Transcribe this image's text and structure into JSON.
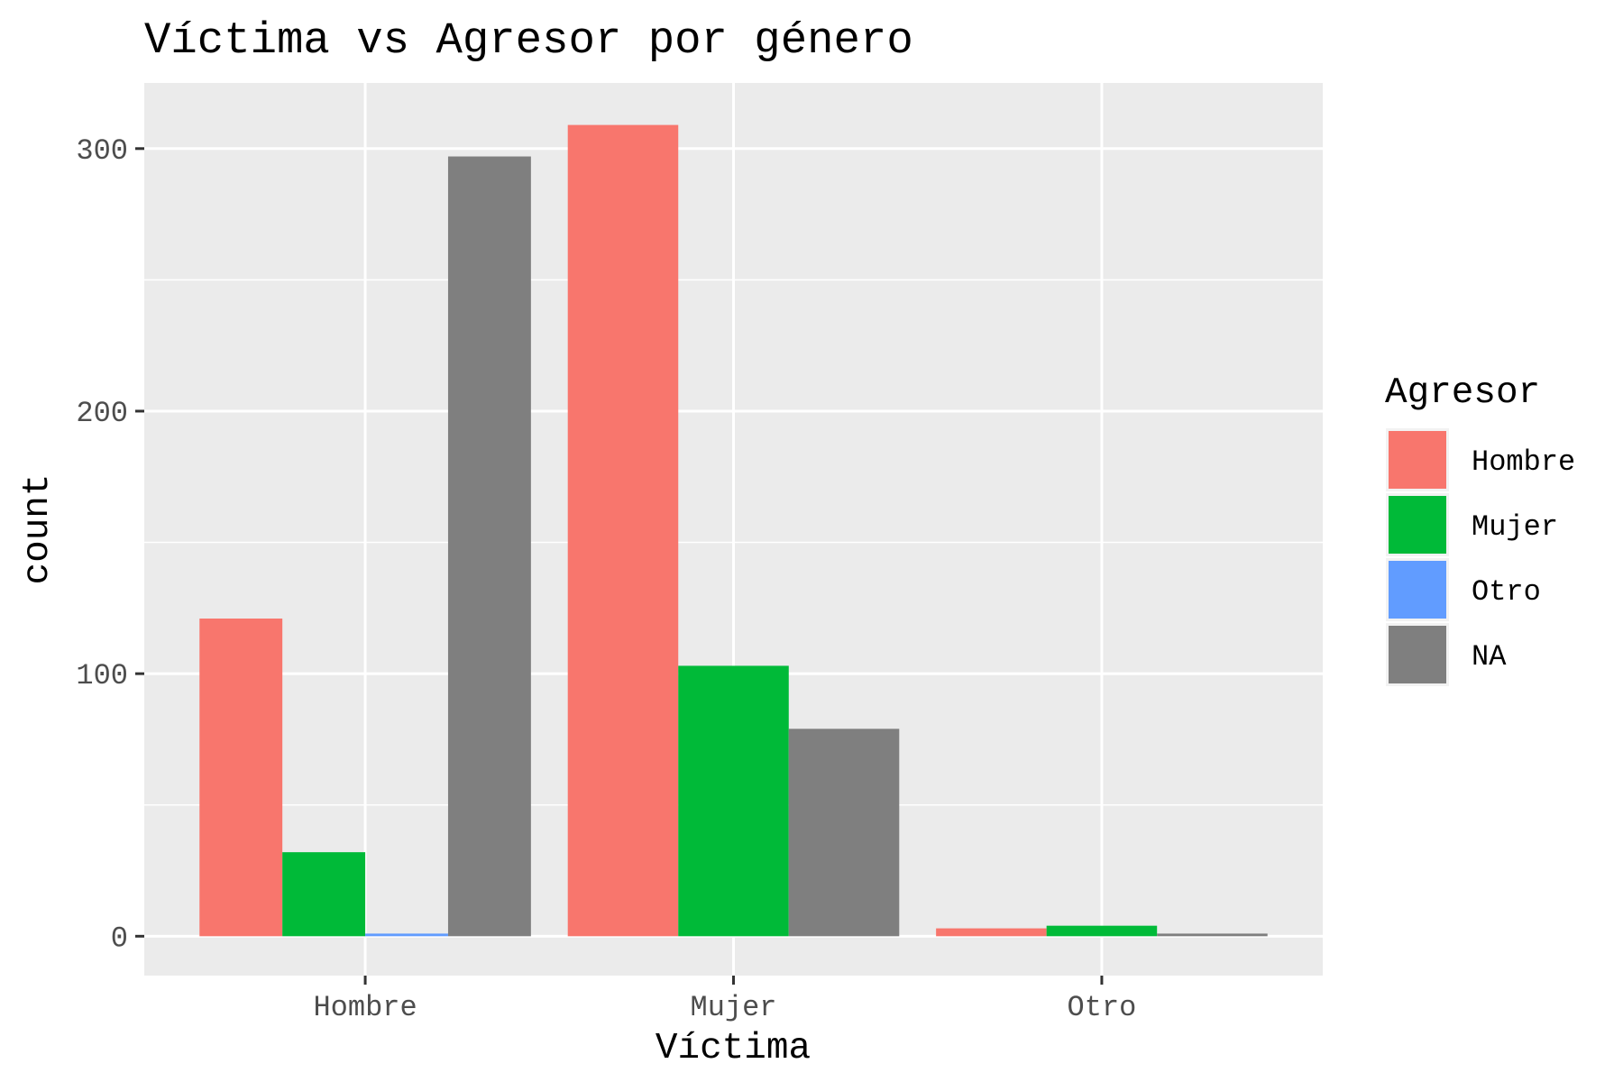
{
  "chart_data": {
    "type": "bar",
    "title": "Víctima vs Agresor por género",
    "xlabel": "Víctima",
    "ylabel": "count",
    "categories": [
      "Hombre",
      "Mujer",
      "Otro"
    ],
    "series": [
      {
        "name": "Hombre",
        "color": "#F8766D",
        "values": [
          121,
          309,
          3
        ]
      },
      {
        "name": "Mujer",
        "color": "#00BA38",
        "values": [
          32,
          103,
          4
        ]
      },
      {
        "name": "Otro",
        "color": "#619CFF",
        "values": [
          1,
          null,
          null
        ]
      },
      {
        "name": "NA",
        "color": "#7F7F7F",
        "values": [
          297,
          79,
          1
        ]
      }
    ],
    "ylim": [
      -15,
      325
    ],
    "yticks": [
      0,
      100,
      200,
      300
    ],
    "grid": true,
    "legend": {
      "title": "Agresor",
      "position": "right"
    },
    "colors": {
      "panel": "#EBEBEB",
      "grid": "#FFFFFF"
    }
  }
}
